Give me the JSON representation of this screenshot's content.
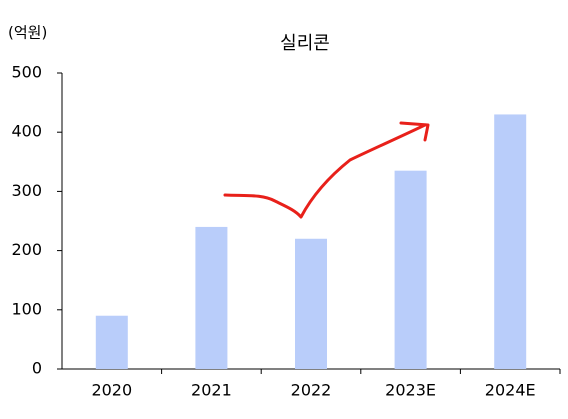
{
  "chart_data": {
    "type": "bar",
    "title": "실리콘",
    "y_label": "(억원)",
    "categories": [
      "2020",
      "2021",
      "2022",
      "2023E",
      "2024E"
    ],
    "values": [
      90,
      240,
      220,
      335,
      430
    ],
    "color": "#b9cdfa",
    "ylim": [
      0,
      500
    ],
    "yticks": [
      0,
      100,
      200,
      300,
      400,
      500
    ],
    "grid": false
  }
}
